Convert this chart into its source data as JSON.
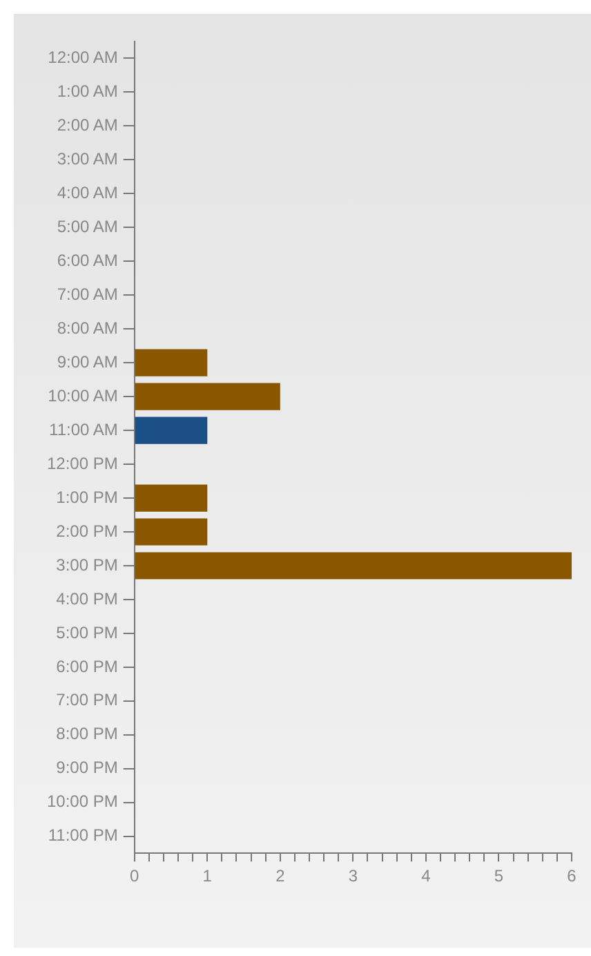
{
  "chart_data": {
    "type": "bar",
    "orientation": "horizontal",
    "categories": [
      "12:00 AM",
      "1:00 AM",
      "2:00 AM",
      "3:00 AM",
      "4:00 AM",
      "5:00 AM",
      "6:00 AM",
      "7:00 AM",
      "8:00 AM",
      "9:00 AM",
      "10:00 AM",
      "11:00 AM",
      "12:00 PM",
      "1:00 PM",
      "2:00 PM",
      "3:00 PM",
      "4:00 PM",
      "5:00 PM",
      "6:00 PM",
      "7:00 PM",
      "8:00 PM",
      "9:00 PM",
      "10:00 PM",
      "11:00 PM"
    ],
    "values": [
      null,
      null,
      null,
      null,
      null,
      null,
      null,
      null,
      null,
      1,
      2,
      1,
      null,
      1,
      1,
      6,
      null,
      null,
      null,
      null,
      null,
      null,
      null,
      null
    ],
    "colors": [
      "#8a5600",
      "#8a5600",
      "#8a5600",
      "#8a5600",
      "#8a5600",
      "#8a5600",
      "#8a5600",
      "#8a5600",
      "#8a5600",
      "#8a5600",
      "#8a5600",
      "#1b4f86",
      "#8a5600",
      "#8a5600",
      "#8a5600",
      "#8a5600",
      "#8a5600",
      "#8a5600",
      "#8a5600",
      "#8a5600",
      "#8a5600",
      "#8a5600",
      "#8a5600",
      "#8a5600"
    ],
    "xlim": [
      0,
      6
    ],
    "xticks": [
      0,
      {
        "value": 0.2,
        "label": null
      },
      {
        "value": 0.4,
        "label": null
      },
      {
        "value": 0.6,
        "label": null
      },
      {
        "value": 0.8,
        "label": null
      },
      1,
      {
        "value": 1.2,
        "label": null
      },
      {
        "value": 1.4,
        "label": null
      },
      {
        "value": 1.6,
        "label": null
      },
      {
        "value": 1.8,
        "label": null
      },
      2,
      {
        "value": 2.2,
        "label": null
      },
      {
        "value": 2.4,
        "label": null
      },
      {
        "value": 2.6,
        "label": null
      },
      {
        "value": 2.8,
        "label": null
      },
      3,
      {
        "value": 3.2,
        "label": null
      },
      {
        "value": 3.4,
        "label": null
      },
      {
        "value": 3.6,
        "label": null
      },
      {
        "value": 3.8,
        "label": null
      },
      4,
      {
        "value": 4.2,
        "label": null
      },
      {
        "value": 4.4,
        "label": null
      },
      {
        "value": 4.6,
        "label": null
      },
      {
        "value": 4.8,
        "label": null
      },
      5,
      {
        "value": 5.2,
        "label": null
      },
      {
        "value": 5.4,
        "label": null
      },
      {
        "value": 5.6,
        "label": null
      },
      {
        "value": 5.8,
        "label": null
      },
      6
    ],
    "grid": false,
    "legend": false
  }
}
